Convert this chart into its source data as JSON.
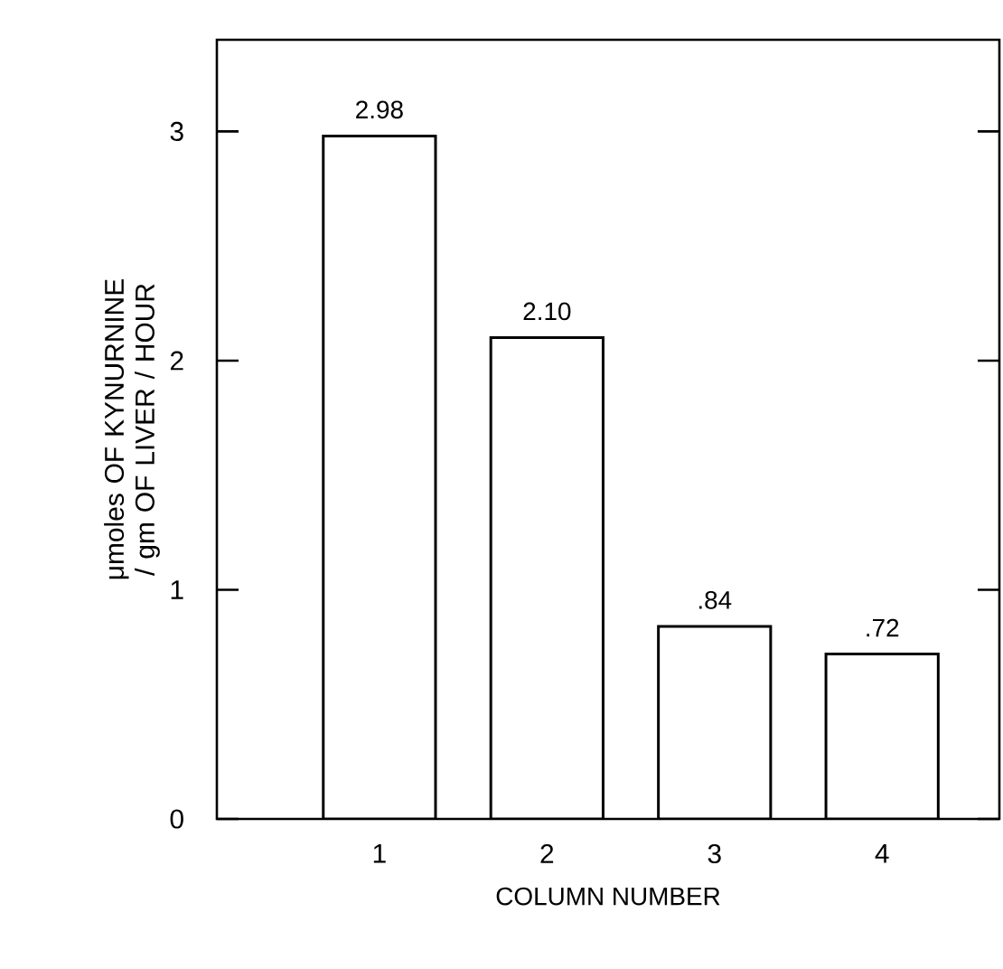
{
  "chart_data": {
    "type": "bar",
    "xlabel": "COLUMN NUMBER",
    "ylabel": "μmoles OF KYNURNINE / gm OF LIVER / HOUR",
    "categories": [
      "1",
      "2",
      "3",
      "4"
    ],
    "values": [
      2.98,
      2.1,
      0.84,
      0.72
    ],
    "value_labels": [
      "2.98",
      "2.10",
      ".84",
      ".72"
    ],
    "color": "#ffffff",
    "ylim": [
      0,
      3.4
    ],
    "yticks": [
      0,
      1,
      2,
      3
    ]
  }
}
